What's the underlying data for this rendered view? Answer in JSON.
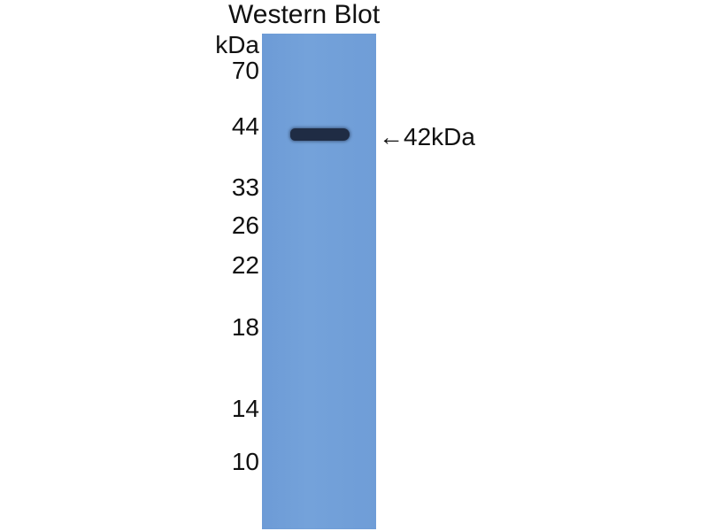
{
  "title": "Western Blot",
  "unit_label": "kDa",
  "markers": [
    "70",
    "44",
    "33",
    "26",
    "22",
    "18",
    "14",
    "10"
  ],
  "band_annotation": "←42kDa",
  "colors": {
    "membrane": "#6f9dd7",
    "band": "#1f2c44"
  }
}
